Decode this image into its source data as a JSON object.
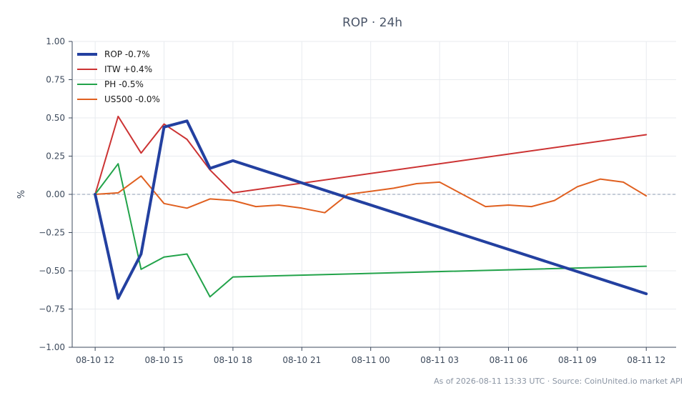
{
  "chart_data": {
    "type": "line",
    "title": "ROP · 24h",
    "xlabel": "",
    "ylabel": "%",
    "ylim": [
      -1.0,
      1.0
    ],
    "yticks": [
      "1.00",
      "0.75",
      "0.50",
      "0.25",
      "0.00",
      "−0.25",
      "−0.50",
      "−0.75",
      "−1.00"
    ],
    "ytick_values": [
      1.0,
      0.75,
      0.5,
      0.25,
      0.0,
      -0.25,
      -0.5,
      -0.75,
      -1.0
    ],
    "xticks": [
      "08-10 12",
      "08-10 15",
      "08-10 18",
      "08-10 21",
      "08-11 00",
      "08-11 03",
      "08-11 06",
      "08-11 09",
      "08-11 12"
    ],
    "xlim_hours": [
      -1.0,
      25.3
    ],
    "grid": true,
    "legend_position": "top-left",
    "zero_line": true,
    "series": [
      {
        "name": "ROP -0.7%",
        "color": "#2340a0",
        "width": 4,
        "x": [
          0,
          1,
          2,
          3,
          4,
          5,
          6,
          24
        ],
        "y": [
          0.0,
          -0.68,
          -0.39,
          0.44,
          0.48,
          0.17,
          0.22,
          -0.65
        ]
      },
      {
        "name": "ITW +0.4%",
        "color": "#cc3333",
        "width": 2,
        "x": [
          0,
          1,
          2,
          3,
          4,
          5,
          6,
          24
        ],
        "y": [
          0.0,
          0.51,
          0.27,
          0.46,
          0.36,
          0.16,
          0.01,
          0.39
        ]
      },
      {
        "name": "PH -0.5%",
        "color": "#22a34a",
        "width": 2,
        "x": [
          0,
          1,
          2,
          3,
          4,
          5,
          6,
          24
        ],
        "y": [
          0.0,
          0.2,
          -0.49,
          -0.41,
          -0.39,
          -0.67,
          -0.54,
          -0.47
        ]
      },
      {
        "name": "US500 -0.0%",
        "color": "#e06020",
        "width": 2,
        "x": [
          0,
          1,
          2,
          3,
          4,
          5,
          6,
          7,
          8,
          9,
          10,
          11,
          12,
          13,
          14,
          15,
          16,
          17,
          18,
          19,
          20,
          21,
          22,
          23,
          24
        ],
        "y": [
          0.0,
          0.01,
          0.12,
          -0.06,
          -0.09,
          -0.03,
          -0.04,
          -0.08,
          -0.07,
          -0.09,
          -0.12,
          -0.0,
          0.02,
          0.04,
          0.07,
          0.08,
          -0.0,
          -0.08,
          -0.07,
          -0.08,
          -0.04,
          0.05,
          0.1,
          0.08,
          -0.01
        ]
      }
    ]
  },
  "footer": {
    "text": "As of 2026-08-11 13:33 UTC · Source: CoinUnited.io market API"
  }
}
